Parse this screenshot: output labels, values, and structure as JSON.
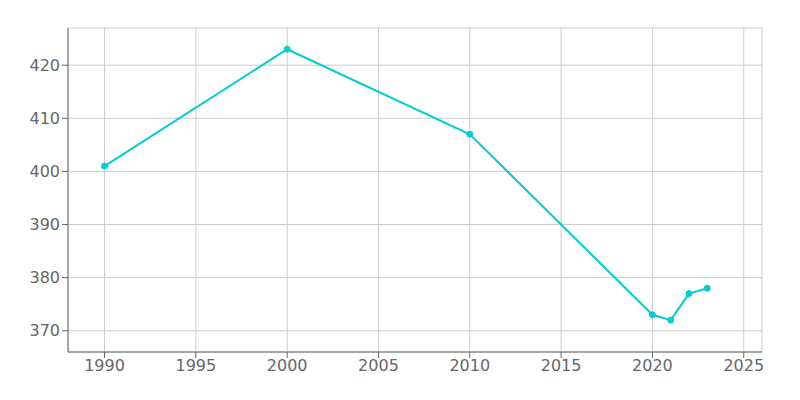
{
  "chart_data": {
    "type": "line",
    "x": [
      1990,
      2000,
      2010,
      2020,
      2021,
      2022,
      2023
    ],
    "values": [
      401,
      423,
      407,
      373,
      372,
      377,
      378
    ],
    "color": "#00CED1",
    "marker": "circle",
    "xlim": [
      1988,
      2026
    ],
    "ylim": [
      366,
      427
    ],
    "xticks": [
      1990,
      1995,
      2000,
      2005,
      2010,
      2015,
      2020,
      2025
    ],
    "yticks": [
      370,
      380,
      390,
      400,
      410,
      420
    ],
    "grid": true
  }
}
